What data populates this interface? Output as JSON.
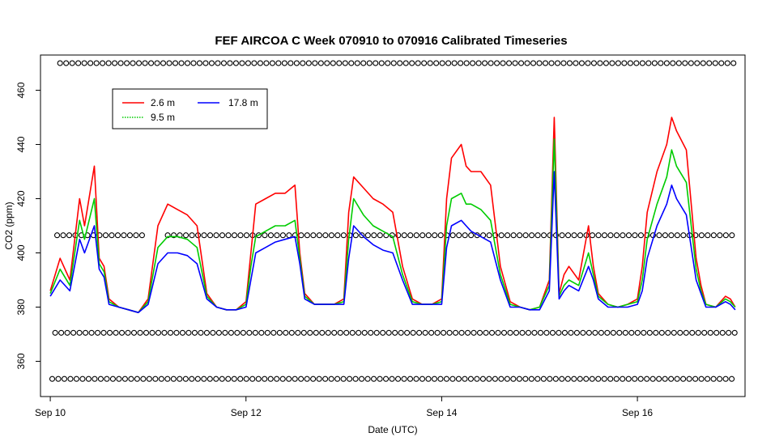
{
  "chart_data": {
    "type": "line",
    "title": "FEF AIRCOA C  Week 070910 to 070916  Calibrated Timeseries",
    "xlabel": "Date (UTC)",
    "ylabel": "CO2 (ppm)",
    "xlim": [
      -0.1,
      7.1
    ],
    "ylim": [
      347,
      473
    ],
    "xticks": [
      {
        "value": 0,
        "label": "Sep 10"
      },
      {
        "value": 2,
        "label": "Sep 12"
      },
      {
        "value": 4,
        "label": "Sep 14"
      },
      {
        "value": 6,
        "label": "Sep 16"
      }
    ],
    "yticks": [
      360,
      380,
      400,
      420,
      440,
      460
    ],
    "legend": {
      "position": "top-left",
      "entries": [
        {
          "label": "2.6 m",
          "color": "#ff0000",
          "style": "solid"
        },
        {
          "label": "9.5 m",
          "color": "#00cc00",
          "style": "dotted"
        },
        {
          "label": "17.8 m",
          "color": "#0000ff",
          "style": "solid"
        }
      ]
    },
    "series": [
      {
        "name": "2.6 m",
        "color": "#ff0000",
        "x": [
          0.0,
          0.1,
          0.2,
          0.3,
          0.35,
          0.45,
          0.5,
          0.55,
          0.6,
          0.7,
          0.8,
          0.9,
          1.0,
          1.1,
          1.2,
          1.3,
          1.4,
          1.5,
          1.6,
          1.7,
          1.8,
          1.9,
          2.0,
          2.05,
          2.1,
          2.2,
          2.3,
          2.4,
          2.5,
          2.55,
          2.6,
          2.7,
          2.8,
          2.9,
          3.0,
          3.05,
          3.1,
          3.2,
          3.3,
          3.4,
          3.5,
          3.6,
          3.7,
          3.8,
          3.9,
          4.0,
          4.05,
          4.1,
          4.2,
          4.25,
          4.3,
          4.4,
          4.5,
          4.6,
          4.7,
          4.8,
          4.9,
          5.0,
          5.1,
          5.15,
          5.2,
          5.25,
          5.3,
          5.4,
          5.5,
          5.55,
          5.6,
          5.7,
          5.8,
          5.9,
          6.0,
          6.05,
          6.1,
          6.2,
          6.3,
          6.35,
          6.4,
          6.5,
          6.6,
          6.65,
          6.7,
          6.8,
          6.9,
          6.95,
          7.0
        ],
        "values": [
          386,
          398,
          390,
          420,
          410,
          432,
          398,
          395,
          383,
          380,
          379,
          378,
          383,
          410,
          418,
          416,
          414,
          410,
          385,
          380,
          379,
          379,
          382,
          400,
          418,
          420,
          422,
          422,
          425,
          400,
          385,
          381,
          381,
          381,
          383,
          415,
          428,
          424,
          420,
          418,
          415,
          395,
          383,
          381,
          381,
          383,
          420,
          435,
          440,
          432,
          430,
          430,
          425,
          395,
          382,
          380,
          379,
          380,
          390,
          450,
          385,
          392,
          395,
          390,
          410,
          395,
          385,
          381,
          380,
          381,
          383,
          395,
          415,
          430,
          440,
          450,
          445,
          438,
          398,
          388,
          381,
          380,
          384,
          383,
          380
        ]
      },
      {
        "name": "9.5 m",
        "color": "#00cc00",
        "x": [
          0.0,
          0.1,
          0.2,
          0.3,
          0.35,
          0.45,
          0.5,
          0.55,
          0.6,
          0.7,
          0.8,
          0.9,
          1.0,
          1.1,
          1.2,
          1.3,
          1.4,
          1.5,
          1.6,
          1.7,
          1.8,
          1.9,
          2.0,
          2.05,
          2.1,
          2.2,
          2.3,
          2.4,
          2.5,
          2.55,
          2.6,
          2.7,
          2.8,
          2.9,
          3.0,
          3.05,
          3.1,
          3.2,
          3.3,
          3.4,
          3.5,
          3.6,
          3.7,
          3.8,
          3.9,
          4.0,
          4.05,
          4.1,
          4.2,
          4.25,
          4.3,
          4.4,
          4.5,
          4.6,
          4.7,
          4.8,
          4.9,
          5.0,
          5.1,
          5.15,
          5.2,
          5.25,
          5.3,
          5.4,
          5.5,
          5.55,
          5.6,
          5.7,
          5.8,
          5.9,
          6.0,
          6.05,
          6.1,
          6.2,
          6.3,
          6.35,
          6.4,
          6.5,
          6.6,
          6.65,
          6.7,
          6.8,
          6.9,
          6.95,
          7.0
        ],
        "values": [
          385,
          394,
          388,
          412,
          405,
          420,
          396,
          393,
          382,
          380,
          379,
          378,
          382,
          402,
          406,
          406,
          405,
          402,
          384,
          380,
          379,
          379,
          381,
          395,
          406,
          408,
          410,
          410,
          412,
          398,
          384,
          381,
          381,
          381,
          382,
          405,
          420,
          414,
          410,
          408,
          406,
          392,
          382,
          381,
          381,
          382,
          410,
          420,
          422,
          418,
          418,
          416,
          412,
          392,
          381,
          380,
          379,
          380,
          388,
          442,
          384,
          388,
          390,
          388,
          400,
          392,
          384,
          381,
          380,
          381,
          382,
          390,
          405,
          418,
          428,
          438,
          432,
          426,
          394,
          386,
          381,
          380,
          383,
          382,
          380
        ]
      },
      {
        "name": "17.8 m",
        "color": "#0000ff",
        "x": [
          0.0,
          0.1,
          0.2,
          0.3,
          0.35,
          0.45,
          0.5,
          0.55,
          0.6,
          0.7,
          0.8,
          0.9,
          1.0,
          1.1,
          1.2,
          1.3,
          1.4,
          1.5,
          1.6,
          1.7,
          1.8,
          1.9,
          2.0,
          2.05,
          2.1,
          2.2,
          2.3,
          2.4,
          2.5,
          2.55,
          2.6,
          2.7,
          2.8,
          2.9,
          3.0,
          3.05,
          3.1,
          3.2,
          3.3,
          3.4,
          3.5,
          3.6,
          3.7,
          3.8,
          3.9,
          4.0,
          4.05,
          4.1,
          4.2,
          4.25,
          4.3,
          4.4,
          4.5,
          4.6,
          4.7,
          4.8,
          4.9,
          5.0,
          5.1,
          5.15,
          5.2,
          5.25,
          5.3,
          5.4,
          5.5,
          5.55,
          5.6,
          5.7,
          5.8,
          5.9,
          6.0,
          6.05,
          6.1,
          6.2,
          6.3,
          6.35,
          6.4,
          6.5,
          6.6,
          6.65,
          6.7,
          6.8,
          6.9,
          6.95,
          7.0
        ],
        "values": [
          384,
          390,
          386,
          405,
          400,
          410,
          394,
          391,
          381,
          380,
          379,
          378,
          381,
          396,
          400,
          400,
          399,
          396,
          383,
          380,
          379,
          379,
          380,
          390,
          400,
          402,
          404,
          405,
          406,
          396,
          383,
          381,
          381,
          381,
          381,
          398,
          410,
          406,
          403,
          401,
          400,
          390,
          381,
          381,
          381,
          381,
          402,
          410,
          412,
          410,
          408,
          406,
          404,
          390,
          380,
          380,
          379,
          379,
          386,
          430,
          383,
          386,
          388,
          386,
          395,
          390,
          383,
          380,
          380,
          380,
          381,
          386,
          398,
          410,
          418,
          425,
          420,
          414,
          390,
          385,
          380,
          380,
          382,
          381,
          379
        ]
      }
    ],
    "marker_rows": [
      {
        "y": 470,
        "from": 0.1,
        "to": 7.0,
        "step": 0.062
      },
      {
        "y": 406.5,
        "from": 0.07,
        "to": 0.95,
        "step": 0.062
      },
      {
        "y": 406.5,
        "from": 1.2,
        "to": 7.0,
        "step": 0.062
      },
      {
        "y": 370.5,
        "from": 0.05,
        "to": 7.0,
        "step": 0.062
      },
      {
        "y": 353.5,
        "from": 0.02,
        "to": 7.0,
        "step": 0.062
      }
    ]
  }
}
